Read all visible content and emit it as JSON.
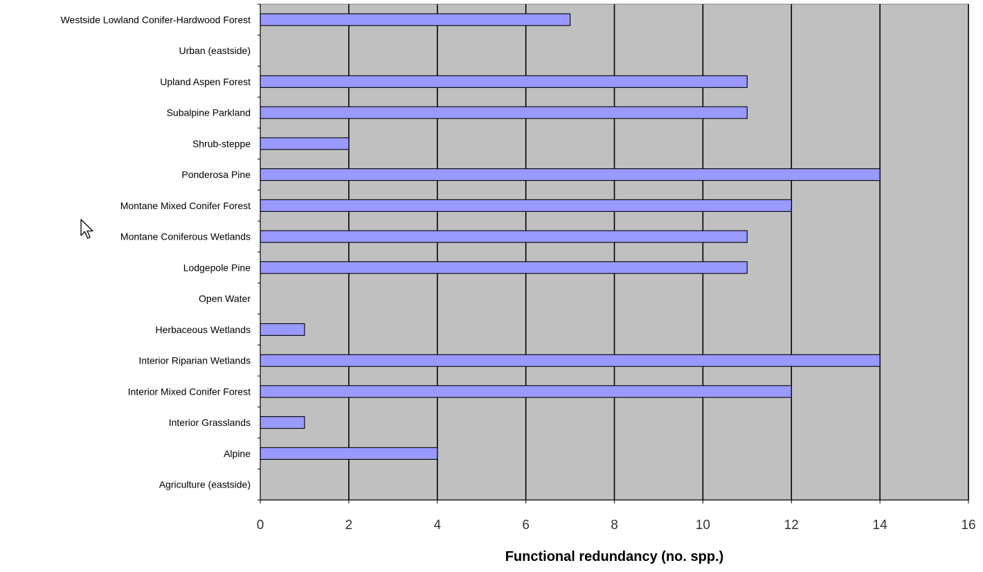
{
  "chart_data": {
    "type": "bar",
    "orientation": "horizontal",
    "categories": [
      "Westside Lowland Conifer-Hardwood Forest",
      "Urban (eastside)",
      "Upland Aspen Forest",
      "Subalpine Parkland",
      "Shrub-steppe",
      "Ponderosa Pine",
      "Montane Mixed Conifer Forest",
      "Montane Coniferous Wetlands",
      "Lodgepole Pine",
      "Open Water",
      "Herbaceous Wetlands",
      "Interior Riparian Wetlands",
      "Interior Mixed Conifer Forest",
      "Interior Grasslands",
      "Alpine",
      "Agriculture (eastside)"
    ],
    "values": [
      7,
      0,
      11,
      11,
      2,
      14,
      12,
      11,
      11,
      0,
      1,
      14,
      12,
      1,
      4,
      0
    ],
    "xlabel": "Functional redundancy (no. spp.)",
    "ylabel": "",
    "xlim": [
      0,
      16
    ],
    "xticks": [
      "0",
      "2",
      "4",
      "6",
      "8",
      "10",
      "12",
      "14",
      "16"
    ],
    "grid": "vertical",
    "legend": "none",
    "colors": {
      "bar_fill": "#9999ff",
      "bar_stroke": "#000000",
      "plot_background": "#c0c0c0",
      "gridline": "#000000"
    }
  },
  "icons": {
    "cursor": "mouse-pointer-icon"
  }
}
